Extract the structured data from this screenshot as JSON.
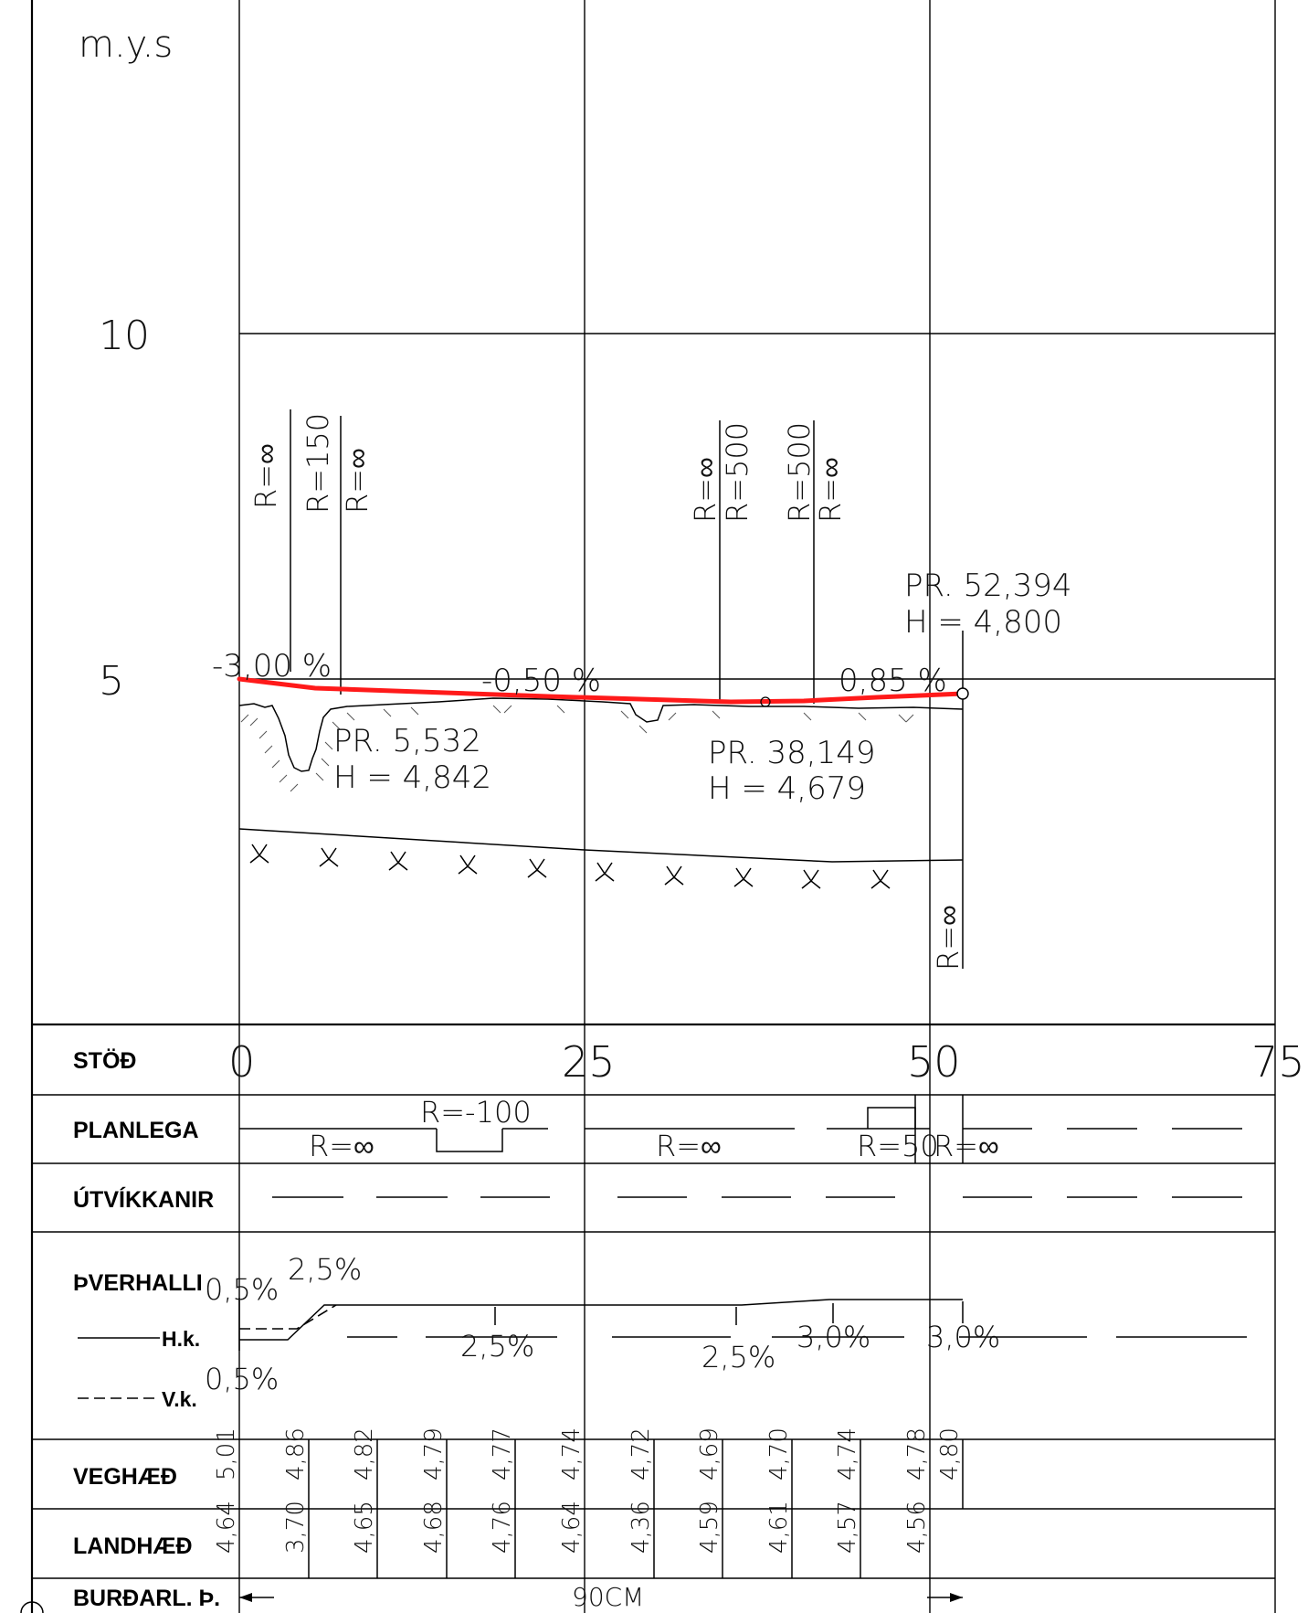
{
  "profile": {
    "unit_label": "m.y.s",
    "elevation_labels": [
      "10",
      "5"
    ],
    "curve_radii_top": [
      "R=∞",
      "R=150",
      "R=∞",
      "R=∞",
      "R=500",
      "R=500",
      "R=∞"
    ],
    "curve_radius_bottom": "R=∞",
    "grades": [
      "-3,00 %",
      "-0,50 %",
      "0,85 %"
    ],
    "points": [
      {
        "station": "PR. 5,532",
        "height": "H = 4,842"
      },
      {
        "station": "PR. 38,149",
        "height": "H = 4,679"
      },
      {
        "station": "PR. 52,394",
        "height": "H = 4,800"
      }
    ],
    "design_line_color": "#ff1a1a"
  },
  "table": {
    "row_labels": {
      "stod": "STÖÐ",
      "planlega": "PLANLEGA",
      "utvikkanir": "ÚTVÍKKANIR",
      "verhalli": "ÞVERHALLI",
      "hk": "H.k.",
      "vk": "V.k.",
      "veghaed": "VEGHÆÐ",
      "landhaed": "LANDHÆÐ",
      "burdarl": "BURÐARL. Þ."
    },
    "stations": [
      "0",
      "25",
      "50",
      "75"
    ],
    "planlega_labels": [
      "R=-100",
      "R=∞",
      "R=∞",
      "R=50",
      "R=∞"
    ],
    "verhalli_labels": [
      "0,5%",
      "2,5%",
      "2,5%",
      "2,5%",
      "3,0%",
      "3,0%",
      "0,5%"
    ],
    "veghaed": [
      "5,01",
      "4,86",
      "4,82",
      "4,79",
      "4,77",
      "4,74",
      "4,72",
      "4,69",
      "4,70",
      "4,74",
      "4,78",
      "4,80"
    ],
    "landhaed": [
      "4,64",
      "3,70",
      "4,65",
      "4,68",
      "4,76",
      "4,64",
      "4,36",
      "4,59",
      "4,61",
      "4,57",
      "4,56"
    ],
    "burdarl_label": "90CM"
  }
}
